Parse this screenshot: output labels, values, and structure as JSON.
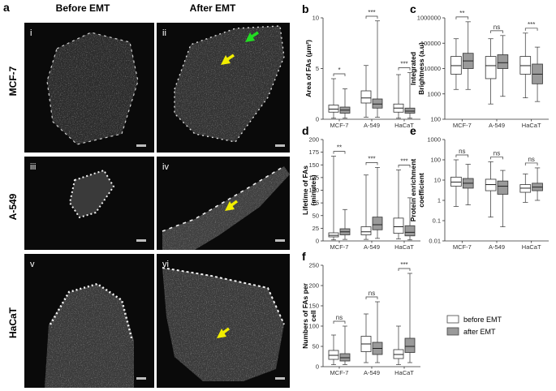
{
  "panel_a": {
    "letter": "a",
    "col_headers": [
      "Before EMT",
      "After EMT"
    ],
    "row_labels": [
      "MCF-7",
      "A-549",
      "HaCaT"
    ],
    "tile_labels": [
      "i",
      "ii",
      "iii",
      "iv",
      "v",
      "vi"
    ],
    "arrow_colors": {
      "green": "#22dd22",
      "yellow": "#f2ee00"
    },
    "scale_bar_color": "#bdbdbd"
  },
  "legend": {
    "items": [
      {
        "label": "before EMT",
        "color": "#ffffff"
      },
      {
        "label": "after EMT",
        "color": "#9a9a9a"
      }
    ]
  },
  "chart_data": [
    {
      "id": "b",
      "type": "boxplot",
      "letter": "b",
      "ylabel": "Area of FAs (μm²)",
      "ylim": [
        0,
        10
      ],
      "yticks": [
        0,
        5,
        10
      ],
      "yscale": "linear",
      "categories": [
        "MCF-7",
        "A-549",
        "HaCaT"
      ],
      "series": [
        {
          "name": "before EMT",
          "boxes": [
            {
              "min": 0.1,
              "q1": 0.7,
              "median": 1.0,
              "q3": 1.4,
              "max": 4.0
            },
            {
              "min": 0.2,
              "q1": 1.6,
              "median": 2.1,
              "q3": 2.8,
              "max": 5.3
            },
            {
              "min": 0.1,
              "q1": 0.7,
              "median": 1.1,
              "q3": 1.5,
              "max": 4.4
            }
          ]
        },
        {
          "name": "after EMT",
          "boxes": [
            {
              "min": 0.1,
              "q1": 0.6,
              "median": 0.9,
              "q3": 1.2,
              "max": 3.0
            },
            {
              "min": 0.2,
              "q1": 1.1,
              "median": 1.5,
              "q3": 2.0,
              "max": 9.7
            },
            {
              "min": 0.1,
              "q1": 0.6,
              "median": 0.8,
              "q3": 1.1,
              "max": 4.6
            }
          ]
        }
      ],
      "significance": [
        "*",
        "***",
        "***"
      ]
    },
    {
      "id": "c",
      "type": "boxplot",
      "letter": "c",
      "ylabel": "Integrated Brightness (a.u)",
      "ylim": [
        100,
        1000000
      ],
      "yticks": [
        100,
        1000,
        10000,
        100000,
        1000000
      ],
      "yscale": "log",
      "categories": [
        "MCF-7",
        "A-549",
        "HaCaT"
      ],
      "series": [
        {
          "name": "before EMT",
          "boxes": [
            {
              "min": 1500,
              "q1": 6000,
              "median": 13000,
              "q3": 30000,
              "max": 150000
            },
            {
              "min": 400,
              "q1": 4000,
              "median": 13000,
              "q3": 30000,
              "max": 150000
            },
            {
              "min": 700,
              "q1": 6000,
              "median": 13000,
              "q3": 30000,
              "max": 250000
            }
          ]
        },
        {
          "name": "after EMT",
          "boxes": [
            {
              "min": 1500,
              "q1": 10000,
              "median": 20000,
              "q3": 40000,
              "max": 700000
            },
            {
              "min": 800,
              "q1": 10000,
              "median": 17000,
              "q3": 35000,
              "max": 200000
            },
            {
              "min": 500,
              "q1": 2500,
              "median": 6000,
              "q3": 15000,
              "max": 70000
            }
          ]
        }
      ],
      "significance": [
        "**",
        "ns",
        "***"
      ]
    },
    {
      "id": "d",
      "type": "boxplot",
      "letter": "d",
      "ylabel": "Lifetime of FAs (minutes)",
      "ylim": [
        0,
        200
      ],
      "yticks": [
        0,
        25,
        50,
        75,
        100,
        125,
        150,
        175,
        200
      ],
      "yscale": "linear",
      "categories": [
        "MCF-7",
        "A-549",
        "HaCaT"
      ],
      "series": [
        {
          "name": "before EMT",
          "boxes": [
            {
              "min": 2,
              "q1": 8,
              "median": 11,
              "q3": 16,
              "max": 167
            },
            {
              "min": 3,
              "q1": 12,
              "median": 18,
              "q3": 28,
              "max": 130
            },
            {
              "min": 4,
              "q1": 15,
              "median": 28,
              "q3": 45,
              "max": 140
            }
          ]
        },
        {
          "name": "after EMT",
          "boxes": [
            {
              "min": 3,
              "q1": 12,
              "median": 18,
              "q3": 24,
              "max": 62
            },
            {
              "min": 5,
              "q1": 22,
              "median": 32,
              "q3": 47,
              "max": 145
            },
            {
              "min": 2,
              "q1": 10,
              "median": 17,
              "q3": 30,
              "max": 85
            }
          ]
        }
      ],
      "significance": [
        "**",
        "***",
        "***"
      ]
    },
    {
      "id": "e",
      "type": "boxplot",
      "letter": "e",
      "ylabel": "Protein enrichment coefficient",
      "ylim": [
        0.01,
        1000
      ],
      "yticks": [
        0.01,
        0.1,
        1,
        10,
        100,
        1000
      ],
      "yscale": "log",
      "categories": [
        "MCF-7",
        "A-549",
        "HaCaT"
      ],
      "series": [
        {
          "name": "before EMT",
          "boxes": [
            {
              "min": 0.5,
              "q1": 5,
              "median": 8,
              "q3": 14,
              "max": 100
            },
            {
              "min": 0.15,
              "q1": 3,
              "median": 6,
              "q3": 11,
              "max": 80
            },
            {
              "min": 0.8,
              "q1": 2.5,
              "median": 4,
              "q3": 6,
              "max": 20
            }
          ]
        },
        {
          "name": "after EMT",
          "boxes": [
            {
              "min": 0.6,
              "q1": 4,
              "median": 7,
              "q3": 12,
              "max": 60
            },
            {
              "min": 0.05,
              "q1": 2,
              "median": 5,
              "q3": 9,
              "max": 30
            },
            {
              "min": 1,
              "q1": 3,
              "median": 4.5,
              "q3": 7,
              "max": 40
            }
          ]
        }
      ],
      "significance": [
        "ns",
        "ns",
        "ns"
      ]
    },
    {
      "id": "f",
      "type": "boxplot",
      "letter": "f",
      "ylabel": "Numbers of FAs per cell",
      "ylim": [
        0,
        250
      ],
      "yticks": [
        0,
        50,
        100,
        150,
        200,
        250
      ],
      "yscale": "linear",
      "categories": [
        "MCF-7",
        "A-549",
        "HaCaT"
      ],
      "series": [
        {
          "name": "before EMT",
          "boxes": [
            {
              "min": 5,
              "q1": 18,
              "median": 28,
              "q3": 40,
              "max": 78
            },
            {
              "min": 10,
              "q1": 37,
              "median": 56,
              "q3": 75,
              "max": 130
            },
            {
              "min": 5,
              "q1": 20,
              "median": 30,
              "q3": 42,
              "max": 100
            }
          ]
        },
        {
          "name": "after EMT",
          "boxes": [
            {
              "min": 5,
              "q1": 14,
              "median": 22,
              "q3": 32,
              "max": 100
            },
            {
              "min": 10,
              "q1": 30,
              "median": 45,
              "q3": 60,
              "max": 160
            },
            {
              "min": 10,
              "q1": 35,
              "median": 50,
              "q3": 70,
              "max": 230
            }
          ]
        }
      ],
      "significance": [
        "ns",
        "ns",
        "***"
      ]
    }
  ]
}
